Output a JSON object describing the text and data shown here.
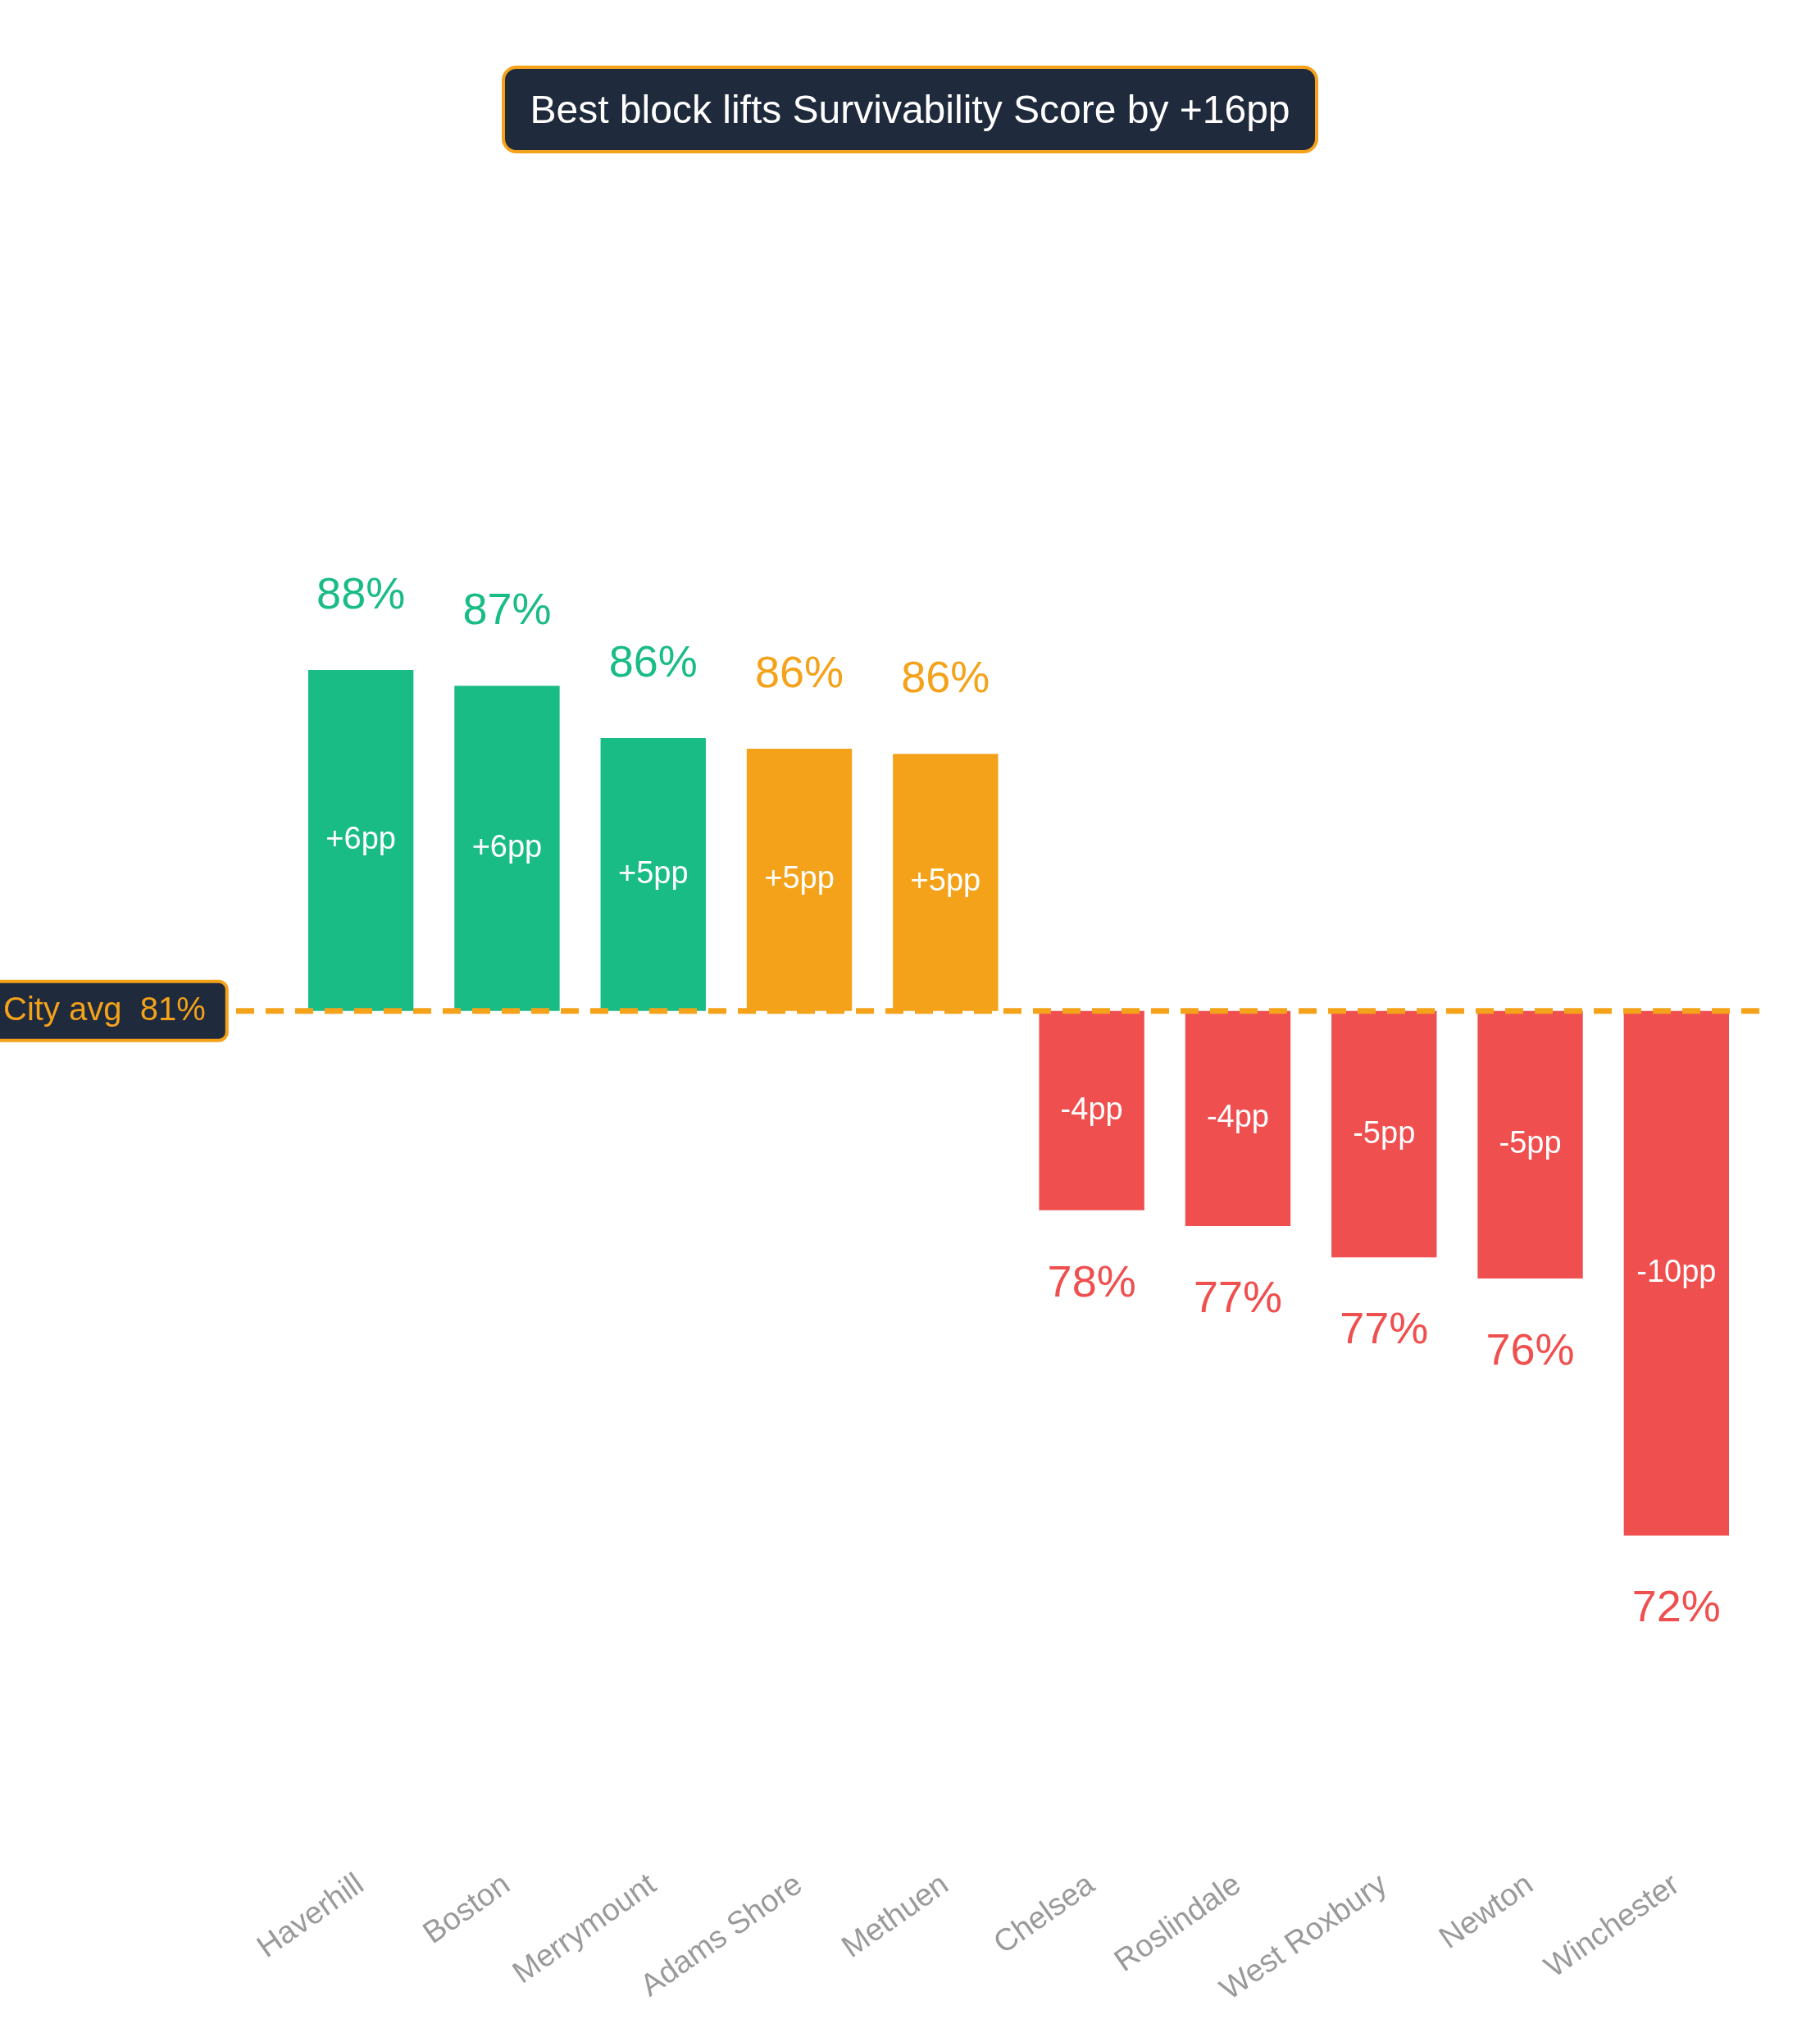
{
  "chart_data": {
    "type": "bar",
    "title": "Best block lifts Survivability Score by +16pp",
    "categories": [
      "Haverhill",
      "Boston",
      "Merrymount",
      "Adams Shore",
      "Methuen",
      "Chelsea",
      "Roslindale",
      "West Roxbury",
      "Newton",
      "Winchester"
    ],
    "values": [
      6.5,
      6.2,
      5.2,
      5.0,
      4.9,
      -3.8,
      -4.1,
      -4.7,
      -5.1,
      -10.0
    ],
    "colors": [
      "#1abc85",
      "#1abc85",
      "#1abc85",
      "#f4a21a",
      "#f4a21a",
      "#ef4f4f",
      "#ef4f4f",
      "#ef4f4f",
      "#ef4f4f",
      "#ef4f4f"
    ],
    "value_labels": [
      "+6pp",
      "+6pp",
      "+5pp",
      "+5pp",
      "+5pp",
      "-4pp",
      "-4pp",
      "-5pp",
      "-5pp",
      "-10pp"
    ],
    "tick_labels": "x",
    "grid": false,
    "legend": false,
    "ref_lines": [
      {
        "axis": "y",
        "value": 0,
        "label": "City avg  81%",
        "color": "#f4a21a",
        "line_style": "dashed"
      }
    ],
    "annotations": [
      {
        "text": "88%",
        "x": "Haverhill",
        "y": 6.5
      },
      {
        "text": "87%",
        "x": "Boston",
        "y": 6.2
      },
      {
        "text": "86%",
        "x": "Merrymount",
        "y": 5.2
      },
      {
        "text": "86%",
        "x": "Adams Shore",
        "y": 5.0
      },
      {
        "text": "86%",
        "x": "Methuen",
        "y": 4.9
      },
      {
        "text": "78%",
        "x": "Chelsea",
        "y": -3.8
      },
      {
        "text": "77%",
        "x": "Roslindale",
        "y": -4.1
      },
      {
        "text": "77%",
        "x": "West Roxbury",
        "y": -4.7
      },
      {
        "text": "76%",
        "x": "Newton",
        "y": -5.1
      },
      {
        "text": "72%",
        "x": "Winchester",
        "y": -10.0
      }
    ]
  }
}
